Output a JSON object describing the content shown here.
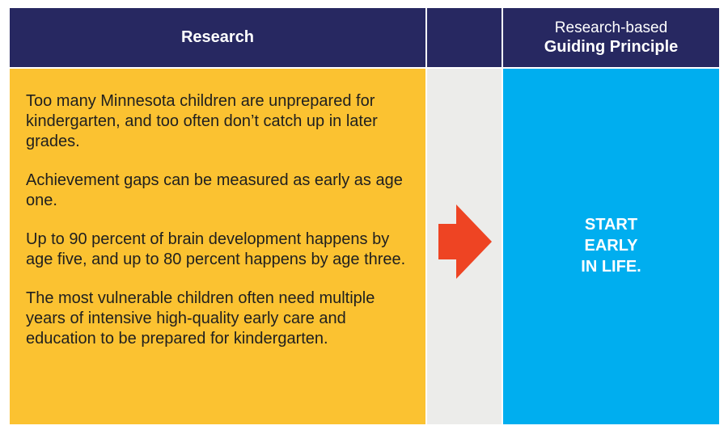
{
  "header": {
    "research_title": "Research",
    "principle_subtitle": "Research-based",
    "principle_title": "Guiding Principle"
  },
  "research": {
    "paragraphs": [
      "Too many Minnesota children are unprepared for kindergarten, and too often don’t catch up in later grades.",
      "Achievement gaps can be measured as early as age one.",
      "Up to 90 percent of brain development happens by age five, and up to 80 percent happens by age three.",
      "The most vulnerable children often need multiple years of intensive high-quality early care and education to be prepared for kindergarten."
    ]
  },
  "connector": {
    "icon": "right-arrow-icon",
    "color": "#ee4423"
  },
  "principle": {
    "lines": [
      "START",
      "EARLY",
      "IN LIFE."
    ]
  },
  "colors": {
    "header_bg": "#272861",
    "research_bg": "#fbc231",
    "connector_bg": "#ececea",
    "principle_bg": "#00aeef"
  }
}
